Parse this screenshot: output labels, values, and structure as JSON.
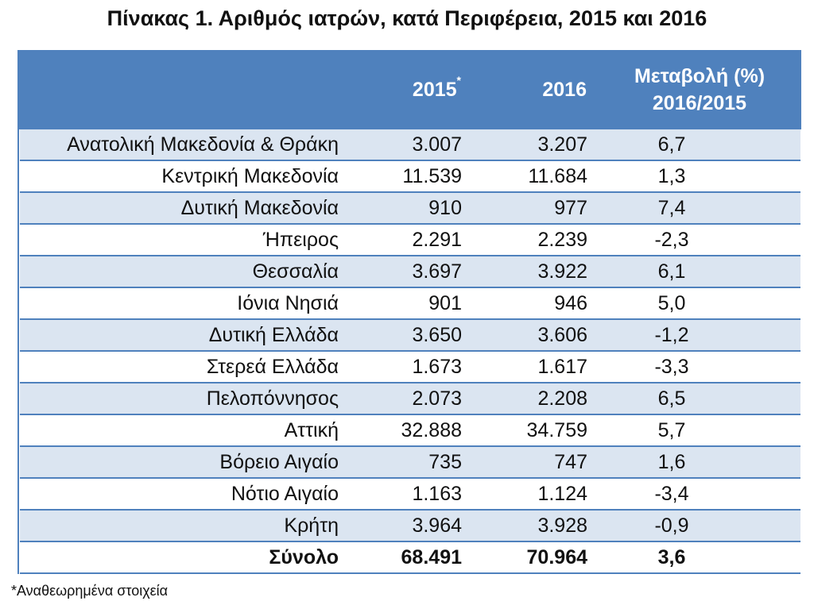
{
  "title": "Πίνακας 1. Αριθμός ιατρών, κατά Περιφέρεια, 2015 και 2016",
  "header": {
    "region": "",
    "year_2015": "2015",
    "year_2015_mark": "*",
    "year_2016": "2016",
    "change_line1": "Μεταβολή (%)",
    "change_line2": "2016/2015"
  },
  "rows": [
    {
      "region": "Ανατολική Μακεδονία & Θράκη",
      "v2015": "3.007",
      "v2016": "3.207",
      "change": "6,7"
    },
    {
      "region": "Κεντρική Μακεδονία",
      "v2015": "11.539",
      "v2016": "11.684",
      "change": "1,3"
    },
    {
      "region": "Δυτική Μακεδονία",
      "v2015": "910",
      "v2016": "977",
      "change": "7,4"
    },
    {
      "region": "Ήπειρος",
      "v2015": "2.291",
      "v2016": "2.239",
      "change": "-2,3"
    },
    {
      "region": "Θεσσαλία",
      "v2015": "3.697",
      "v2016": "3.922",
      "change": "6,1"
    },
    {
      "region": "Ιόνια Νησιά",
      "v2015": "901",
      "v2016": "946",
      "change": "5,0"
    },
    {
      "region": "Δυτική Ελλάδα",
      "v2015": "3.650",
      "v2016": "3.606",
      "change": "-1,2"
    },
    {
      "region": "Στερεά Ελλάδα",
      "v2015": "1.673",
      "v2016": "1.617",
      "change": "-3,3"
    },
    {
      "region": "Πελοπόννησος",
      "v2015": "2.073",
      "v2016": "2.208",
      "change": "6,5"
    },
    {
      "region": "Αττική",
      "v2015": "32.888",
      "v2016": "34.759",
      "change": "5,7"
    },
    {
      "region": "Βόρειο Αιγαίο",
      "v2015": "735",
      "v2016": "747",
      "change": "1,6"
    },
    {
      "region": "Νότιο Αιγαίο",
      "v2015": "1.163",
      "v2016": "1.124",
      "change": "-3,4"
    },
    {
      "region": "Κρήτη",
      "v2015": "3.964",
      "v2016": "3.928",
      "change": "-0,9"
    }
  ],
  "total": {
    "region": "Σύνολο",
    "v2015": "68.491",
    "v2016": "70.964",
    "change": "3,6"
  },
  "footnote": "*Αναθεωρημένα στοιχεία",
  "colors": {
    "header_bg": "#4f81bd",
    "band_bg": "#dbe5f1",
    "border": "#4f81bd"
  }
}
